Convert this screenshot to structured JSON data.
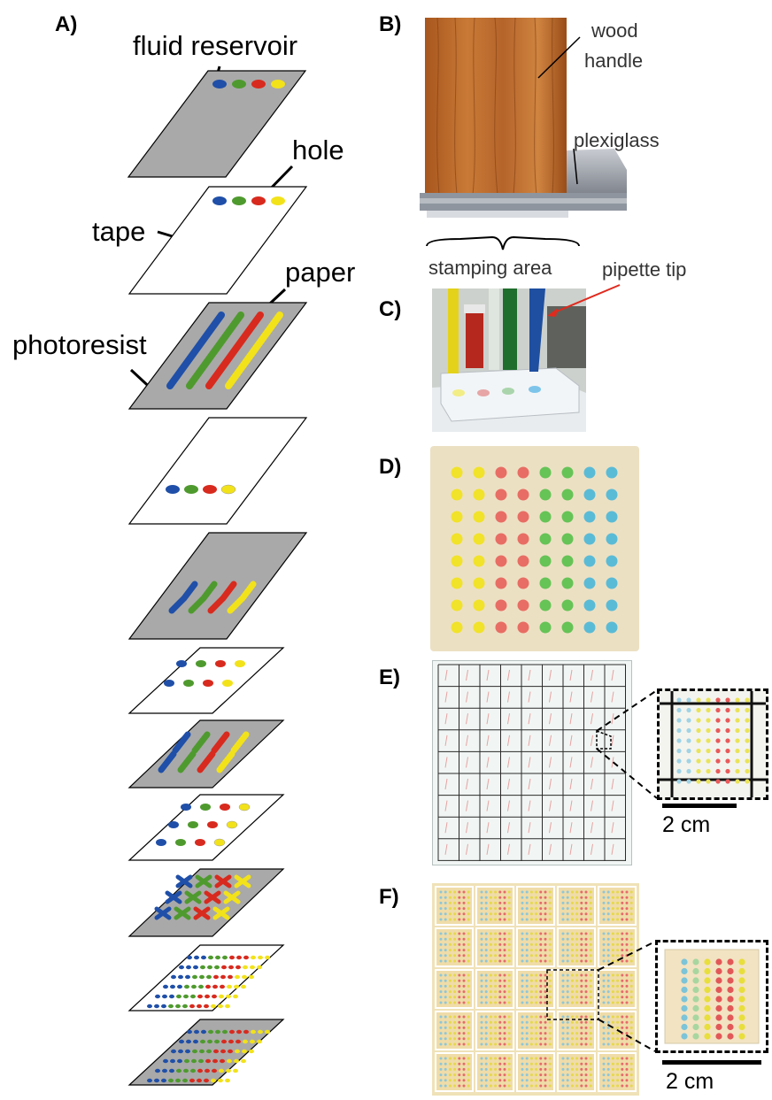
{
  "panels": {
    "a": {
      "letter": "A)",
      "labels": {
        "fluid_reservoir": "fluid reservoir",
        "hole": "hole",
        "tape": "tape",
        "paper": "paper",
        "photoresist": "photoresist"
      }
    },
    "b": {
      "letter": "B)",
      "labels": {
        "wood_handle_1": "wood",
        "wood_handle_2": "handle",
        "plexiglass": "plexiglass",
        "stamping_area": "stamping area"
      }
    },
    "c": {
      "letter": "C)",
      "labels": {
        "pipette_tip": "pipette tip"
      }
    },
    "d": {
      "letter": "D)"
    },
    "e": {
      "letter": "E)",
      "scale": "2 cm"
    },
    "f": {
      "letter": "F)",
      "scale": "2 cm"
    }
  },
  "colors": {
    "blue": "#1f4fa8",
    "green": "#4f9a2e",
    "red": "#d82a1e",
    "yellow": "#f2e21a",
    "gray_layer": "#a9a9a9",
    "cyan_spot": "#4ab7d8"
  }
}
